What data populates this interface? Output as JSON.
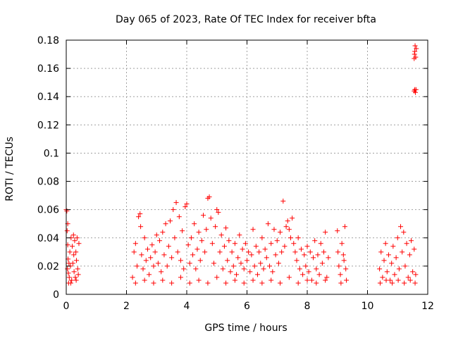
{
  "chart_data": {
    "type": "scatter",
    "title": "Day 065 of 2023, Rate Of TEC Index for receiver bfta",
    "xlabel": "GPS time / hours",
    "ylabel": "ROTI / TECUs",
    "xlim": [
      0,
      12
    ],
    "ylim": [
      0,
      0.18
    ],
    "xticks": [
      0,
      2,
      4,
      6,
      8,
      10,
      12
    ],
    "yticks": [
      0,
      0.02,
      0.04,
      0.06,
      0.08,
      0.1,
      0.12,
      0.14,
      0.16,
      0.18
    ],
    "xtick_labels": [
      "0",
      "2",
      "4",
      "6",
      "8",
      "10",
      "12"
    ],
    "ytick_labels": [
      "0",
      "0.02",
      "0.04",
      "0.06",
      "0.08",
      "0.1",
      "0.12",
      "0.14",
      "0.16",
      "0.18"
    ],
    "grid": true,
    "marker": "+",
    "color": "#ff0000",
    "series": [
      {
        "values": [
          [
            0.0,
            0.06
          ],
          [
            0.02,
            0.059
          ],
          [
            0.03,
            0.045
          ],
          [
            0.05,
            0.035
          ],
          [
            0.06,
            0.025
          ],
          [
            0.07,
            0.015
          ],
          [
            0.08,
            0.008
          ],
          [
            0.1,
            0.012
          ],
          [
            0.12,
            0.03
          ],
          [
            0.14,
            0.02
          ],
          [
            0.16,
            0.04
          ],
          [
            0.18,
            0.01
          ],
          [
            0.2,
            0.034
          ],
          [
            0.22,
            0.022
          ],
          [
            0.24,
            0.042
          ],
          [
            0.26,
            0.016
          ],
          [
            0.28,
            0.038
          ],
          [
            0.3,
            0.012
          ],
          [
            0.32,
            0.03
          ],
          [
            0.34,
            0.024
          ],
          [
            0.36,
            0.04
          ],
          [
            0.38,
            0.018
          ],
          [
            0.4,
            0.014
          ],
          [
            0.42,
            0.036
          ],
          [
            0.05,
            0.05
          ],
          [
            0.04,
            0.018
          ],
          [
            0.09,
            0.022
          ],
          [
            0.15,
            0.008
          ],
          [
            0.25,
            0.028
          ],
          [
            0.33,
            0.01
          ],
          [
            2.2,
            0.012
          ],
          [
            2.25,
            0.03
          ],
          [
            2.3,
            0.036
          ],
          [
            2.35,
            0.02
          ],
          [
            2.4,
            0.055
          ],
          [
            2.45,
            0.057
          ],
          [
            2.47,
            0.048
          ],
          [
            2.5,
            0.028
          ],
          [
            2.55,
            0.018
          ],
          [
            2.6,
            0.04
          ],
          [
            2.65,
            0.024
          ],
          [
            2.7,
            0.032
          ],
          [
            2.75,
            0.014
          ],
          [
            2.8,
            0.026
          ],
          [
            2.85,
            0.035
          ],
          [
            2.9,
            0.02
          ],
          [
            2.95,
            0.03
          ],
          [
            3.0,
            0.042
          ],
          [
            3.05,
            0.022
          ],
          [
            3.1,
            0.038
          ],
          [
            3.15,
            0.016
          ],
          [
            3.2,
            0.044
          ],
          [
            3.25,
            0.028
          ],
          [
            3.3,
            0.05
          ],
          [
            3.35,
            0.02
          ],
          [
            3.4,
            0.034
          ],
          [
            3.45,
            0.052
          ],
          [
            3.5,
            0.026
          ],
          [
            3.55,
            0.06
          ],
          [
            3.6,
            0.04
          ],
          [
            3.65,
            0.065
          ],
          [
            3.7,
            0.03
          ],
          [
            3.75,
            0.055
          ],
          [
            3.8,
            0.024
          ],
          [
            3.85,
            0.045
          ],
          [
            3.9,
            0.018
          ],
          [
            3.95,
            0.062
          ],
          [
            4.0,
            0.064
          ],
          [
            4.05,
            0.035
          ],
          [
            4.1,
            0.022
          ],
          [
            4.15,
            0.04
          ],
          [
            4.2,
            0.028
          ],
          [
            4.25,
            0.05
          ],
          [
            4.3,
            0.018
          ],
          [
            4.35,
            0.032
          ],
          [
            4.4,
            0.044
          ],
          [
            4.45,
            0.024
          ],
          [
            4.5,
            0.038
          ],
          [
            4.55,
            0.056
          ],
          [
            4.6,
            0.03
          ],
          [
            4.65,
            0.046
          ],
          [
            4.7,
            0.068
          ],
          [
            4.75,
            0.069
          ],
          [
            4.8,
            0.054
          ],
          [
            4.85,
            0.036
          ],
          [
            4.9,
            0.022
          ],
          [
            4.95,
            0.048
          ],
          [
            5.0,
            0.06
          ],
          [
            5.05,
            0.058
          ],
          [
            5.1,
            0.03
          ],
          [
            5.15,
            0.042
          ],
          [
            5.2,
            0.018
          ],
          [
            5.25,
            0.034
          ],
          [
            5.3,
            0.047
          ],
          [
            5.35,
            0.024
          ],
          [
            5.4,
            0.038
          ],
          [
            5.45,
            0.016
          ],
          [
            5.5,
            0.03
          ],
          [
            5.55,
            0.02
          ],
          [
            5.6,
            0.036
          ],
          [
            5.65,
            0.014
          ],
          [
            5.7,
            0.026
          ],
          [
            5.75,
            0.042
          ],
          [
            5.8,
            0.022
          ],
          [
            5.85,
            0.032
          ],
          [
            5.9,
            0.018
          ],
          [
            5.95,
            0.036
          ],
          [
            6.0,
            0.024
          ],
          [
            6.05,
            0.03
          ],
          [
            6.1,
            0.016
          ],
          [
            6.15,
            0.028
          ],
          [
            6.2,
            0.046
          ],
          [
            6.25,
            0.02
          ],
          [
            6.3,
            0.034
          ],
          [
            6.35,
            0.014
          ],
          [
            6.4,
            0.03
          ],
          [
            6.45,
            0.022
          ],
          [
            6.5,
            0.04
          ],
          [
            6.55,
            0.018
          ],
          [
            6.6,
            0.032
          ],
          [
            6.65,
            0.026
          ],
          [
            6.7,
            0.05
          ],
          [
            6.75,
            0.02
          ],
          [
            6.8,
            0.036
          ],
          [
            6.85,
            0.016
          ],
          [
            6.9,
            0.046
          ],
          [
            6.95,
            0.028
          ],
          [
            7.0,
            0.038
          ],
          [
            7.05,
            0.022
          ],
          [
            7.1,
            0.044
          ],
          [
            7.15,
            0.03
          ],
          [
            7.2,
            0.066
          ],
          [
            7.25,
            0.034
          ],
          [
            7.3,
            0.048
          ],
          [
            7.35,
            0.052
          ],
          [
            7.4,
            0.046
          ],
          [
            7.45,
            0.04
          ],
          [
            7.5,
            0.054
          ],
          [
            7.55,
            0.036
          ],
          [
            7.6,
            0.03
          ],
          [
            7.65,
            0.024
          ],
          [
            7.7,
            0.04
          ],
          [
            7.75,
            0.018
          ],
          [
            7.8,
            0.032
          ],
          [
            7.85,
            0.014
          ],
          [
            7.9,
            0.028
          ],
          [
            7.95,
            0.02
          ],
          [
            8.0,
            0.034
          ],
          [
            8.05,
            0.016
          ],
          [
            8.1,
            0.03
          ],
          [
            8.15,
            0.01
          ],
          [
            8.2,
            0.026
          ],
          [
            8.25,
            0.038
          ],
          [
            8.3,
            0.018
          ],
          [
            8.35,
            0.028
          ],
          [
            8.4,
            0.014
          ],
          [
            8.45,
            0.036
          ],
          [
            8.5,
            0.022
          ],
          [
            8.55,
            0.03
          ],
          [
            8.6,
            0.044
          ],
          [
            8.65,
            0.012
          ],
          [
            8.7,
            0.026
          ],
          [
            2.3,
            0.008
          ],
          [
            2.6,
            0.01
          ],
          [
            2.9,
            0.008
          ],
          [
            3.2,
            0.01
          ],
          [
            3.5,
            0.008
          ],
          [
            3.8,
            0.012
          ],
          [
            4.1,
            0.008
          ],
          [
            4.4,
            0.01
          ],
          [
            4.7,
            0.008
          ],
          [
            5.0,
            0.012
          ],
          [
            5.3,
            0.008
          ],
          [
            5.6,
            0.01
          ],
          [
            5.9,
            0.008
          ],
          [
            6.2,
            0.01
          ],
          [
            6.5,
            0.008
          ],
          [
            6.8,
            0.01
          ],
          [
            7.1,
            0.008
          ],
          [
            7.4,
            0.012
          ],
          [
            7.7,
            0.008
          ],
          [
            8.0,
            0.01
          ],
          [
            8.3,
            0.008
          ],
          [
            8.6,
            0.01
          ],
          [
            9.0,
            0.045
          ],
          [
            9.05,
            0.02
          ],
          [
            9.1,
            0.014
          ],
          [
            9.15,
            0.036
          ],
          [
            9.2,
            0.028
          ],
          [
            9.25,
            0.048
          ],
          [
            9.28,
            0.018
          ],
          [
            9.3,
            0.01
          ],
          [
            9.02,
            0.03
          ],
          [
            9.12,
            0.008
          ],
          [
            9.22,
            0.024
          ],
          [
            10.4,
            0.018
          ],
          [
            10.45,
            0.03
          ],
          [
            10.5,
            0.012
          ],
          [
            10.55,
            0.024
          ],
          [
            10.6,
            0.036
          ],
          [
            10.65,
            0.016
          ],
          [
            10.7,
            0.028
          ],
          [
            10.75,
            0.01
          ],
          [
            10.8,
            0.022
          ],
          [
            10.85,
            0.034
          ],
          [
            10.9,
            0.014
          ],
          [
            10.95,
            0.026
          ],
          [
            11.0,
            0.04
          ],
          [
            11.05,
            0.018
          ],
          [
            11.1,
            0.048
          ],
          [
            11.15,
            0.03
          ],
          [
            11.2,
            0.044
          ],
          [
            11.25,
            0.02
          ],
          [
            11.3,
            0.036
          ],
          [
            11.35,
            0.012
          ],
          [
            11.4,
            0.028
          ],
          [
            11.45,
            0.038
          ],
          [
            11.5,
            0.016
          ],
          [
            11.55,
            0.032
          ],
          [
            11.6,
            0.014
          ],
          [
            10.42,
            0.008
          ],
          [
            10.62,
            0.01
          ],
          [
            10.82,
            0.008
          ],
          [
            11.02,
            0.01
          ],
          [
            11.22,
            0.008
          ],
          [
            11.42,
            0.01
          ],
          [
            11.58,
            0.008
          ],
          [
            11.55,
            0.167
          ],
          [
            11.56,
            0.17
          ],
          [
            11.57,
            0.172
          ],
          [
            11.58,
            0.176
          ],
          [
            11.6,
            0.168
          ],
          [
            11.62,
            0.174
          ],
          [
            11.55,
            0.144
          ],
          [
            11.57,
            0.145
          ],
          [
            11.59,
            0.143
          ],
          [
            11.61,
            0.145
          ]
        ]
      }
    ]
  }
}
